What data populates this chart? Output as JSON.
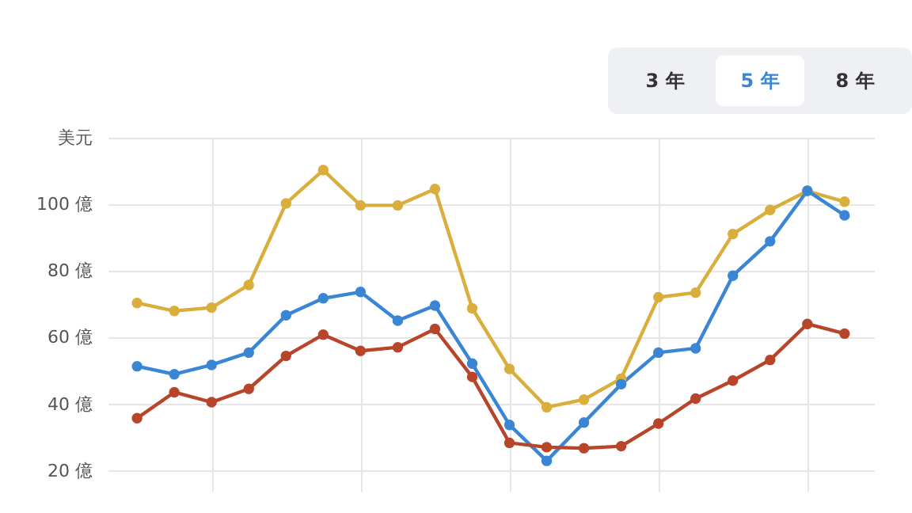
{
  "chart_data": {
    "type": "line",
    "annotations": [
      "3 年",
      "5 年",
      "8 年"
    ],
    "categories": [
      null,
      null,
      null,
      null,
      null,
      null,
      null,
      null,
      null,
      null,
      null,
      null,
      null,
      null,
      null,
      null,
      null,
      null,
      null,
      null
    ],
    "ylim": [
      14,
      120
    ],
    "yticks": [
      {
        "value": 20,
        "label": "20 億"
      },
      {
        "value": 40,
        "label": "40 億"
      },
      {
        "value": 60,
        "label": "60 億"
      },
      {
        "value": 80,
        "label": "80 億"
      },
      {
        "value": 100,
        "label": "100 億"
      },
      {
        "value": 120,
        "label": "美元"
      }
    ],
    "tick_labels": "y",
    "grid": true,
    "legend": false,
    "marker": "circle",
    "line_style": "solid",
    "series": [
      {
        "color": "#d9ae3c",
        "values": [
          70.4,
          68,
          69,
          75.8,
          100.3,
          110.3,
          99.7,
          99.7,
          104.6,
          68.8,
          50.6,
          39.1,
          41.4,
          47.7,
          72.1,
          73.5,
          91.1,
          98.3,
          104,
          100.8
        ]
      },
      {
        "color": "#3a86d4",
        "values": [
          51.4,
          49,
          51.8,
          55.5,
          66.7,
          71.8,
          73.7,
          65.1,
          69.6,
          52.2,
          33.8,
          23,
          34.5,
          46,
          55.5,
          56.8,
          78.6,
          88.9,
          104.1,
          96.7
        ]
      },
      {
        "color": "#b8452a",
        "values": [
          35.8,
          43.6,
          40.6,
          44.6,
          54.5,
          60.9,
          56,
          57.1,
          62.6,
          48.2,
          28.4,
          27.1,
          26.8,
          27.4,
          34.2,
          41.7,
          47.1,
          53.3,
          64.1,
          61.2
        ]
      }
    ]
  }
}
